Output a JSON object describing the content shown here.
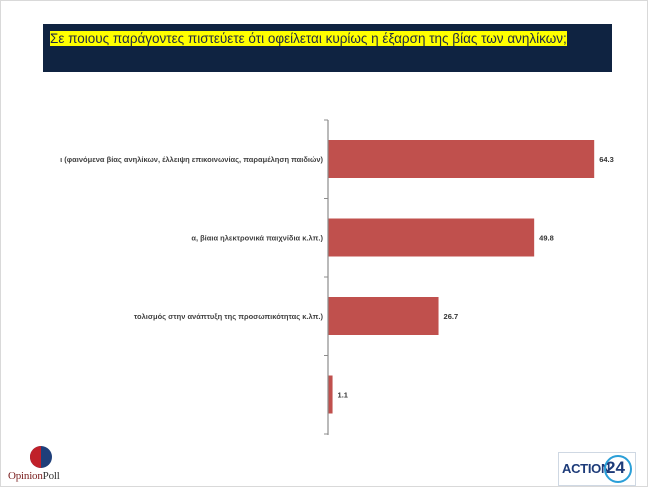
{
  "title": "Σε ποιους παράγοντες πιστεύετε ότι οφείλεται κυρίως η έξαρση της βίας των ανηλίκων;",
  "colors": {
    "title_bg": "#0f2341",
    "title_highlight": "#ffff00",
    "bar": "#c0504d"
  },
  "chart_data": {
    "type": "bar",
    "orientation": "horizontal",
    "categories": [
      "ι (φαινόμενα βίας ανηλίκων, έλλειψη επικοινωνίας, παραμέληση παιδιών)",
      "α, βίαια ηλεκτρονικά παιχνίδια κ.λπ.)",
      "τολισμός στην ανάπτυξη της προσωπικότητας κ.λπ.)",
      ""
    ],
    "values": [
      64.3,
      49.8,
      26.7,
      1.1
    ],
    "value_labels": [
      "64.3",
      "49.8",
      "26.7",
      "1.1"
    ],
    "xlim": [
      0,
      100
    ],
    "grid": false,
    "legend": "none"
  },
  "logos": {
    "left": {
      "part1": "Opinion",
      "part2": "Poll"
    },
    "right": {
      "text": "ACTION",
      "number": "24"
    }
  }
}
